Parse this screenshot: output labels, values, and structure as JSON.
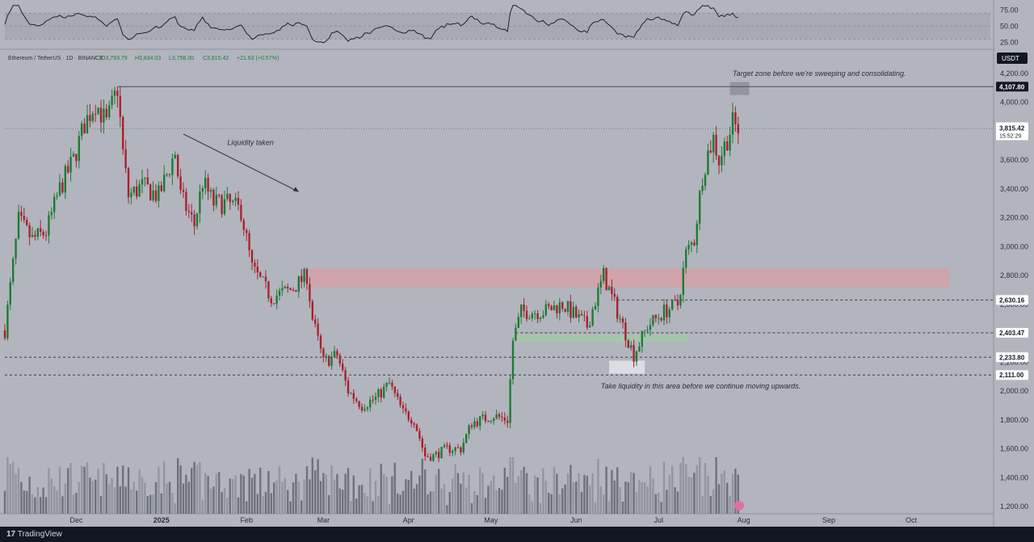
{
  "chart_data": {
    "type": "candlestick",
    "symbol_line": "Ethereum / TetherUS · 1D · BINANCE",
    "ohlc": {
      "open": "O3,793.79",
      "high": "H3,834.03",
      "low": "L3,756.00",
      "close": "C3,815.42",
      "change": "+21.63 (+0.57%)"
    },
    "currency": "USDT",
    "x_labels": [
      "Dec",
      "2025",
      "Feb",
      "Mar",
      "Apr",
      "May",
      "Jun",
      "Jul",
      "Aug",
      "Sep",
      "Oct"
    ],
    "price_ticks": [
      "4,200.00",
      "4,000.00",
      "3,800.00",
      "3,600.00",
      "3,400.00",
      "3,200.00",
      "3,000.00",
      "2,800.00",
      "2,600.00",
      "2,400.00",
      "2,200.00",
      "2,000.00",
      "1,800.00",
      "1,600.00",
      "1,400.00",
      "1,200.00"
    ],
    "rsi_ticks": [
      "75.00",
      "50.00",
      "25.00"
    ],
    "price_labels": [
      {
        "label": "4,107.80",
        "value": 4107.8,
        "style": "dark"
      },
      {
        "label": "2,630.16",
        "value": 2630.16,
        "style": "light"
      },
      {
        "label": "2,403.47",
        "value": 2403.47,
        "style": "light"
      },
      {
        "label": "2,233.80",
        "value": 2233.8,
        "style": "light"
      },
      {
        "label": "2,111.00",
        "value": 2111.0,
        "style": "light"
      }
    ],
    "last_price": {
      "label": "3,815.42",
      "value": 3815.42,
      "countdown": "15:52:29"
    },
    "annotations": [
      "Target zone before we're sweeping and consolidating.",
      "Liquidity taken",
      "Take liquidity in this area before we continue moving upwards."
    ],
    "ylim": [
      1150,
      4350
    ],
    "series": [
      {
        "date": "2024-11-05",
        "close": 2420
      },
      {
        "date": "2024-11-10",
        "close": 3180
      },
      {
        "date": "2024-11-15",
        "close": 3050
      },
      {
        "date": "2024-11-20",
        "close": 3100
      },
      {
        "date": "2024-11-25",
        "close": 3400
      },
      {
        "date": "2024-11-30",
        "close": 3600
      },
      {
        "date": "2024-12-04",
        "close": 3850
      },
      {
        "date": "2024-12-08",
        "close": 4000
      },
      {
        "date": "2024-12-12",
        "close": 3850
      },
      {
        "date": "2024-12-16",
        "close": 4100
      },
      {
        "date": "2024-12-18",
        "close": 3650
      },
      {
        "date": "2024-12-20",
        "close": 3350
      },
      {
        "date": "2024-12-25",
        "close": 3420
      },
      {
        "date": "2024-12-31",
        "close": 3350
      },
      {
        "date": "2025-01-06",
        "close": 3650
      },
      {
        "date": "2025-01-08",
        "close": 3350
      },
      {
        "date": "2025-01-13",
        "close": 3150
      },
      {
        "date": "2025-01-16",
        "close": 3450
      },
      {
        "date": "2025-01-20",
        "close": 3300
      },
      {
        "date": "2025-01-25",
        "close": 3300
      },
      {
        "date": "2025-01-30",
        "close": 3250
      },
      {
        "date": "2025-02-03",
        "close": 2850
      },
      {
        "date": "2025-02-10",
        "close": 2650
      },
      {
        "date": "2025-02-17",
        "close": 2700
      },
      {
        "date": "2025-02-23",
        "close": 2800
      },
      {
        "date": "2025-02-25",
        "close": 2500
      },
      {
        "date": "2025-03-01",
        "close": 2200
      },
      {
        "date": "2025-03-06",
        "close": 2250
      },
      {
        "date": "2025-03-10",
        "close": 2000
      },
      {
        "date": "2025-03-15",
        "close": 1900
      },
      {
        "date": "2025-03-20",
        "close": 1950
      },
      {
        "date": "2025-03-25",
        "close": 2050
      },
      {
        "date": "2025-03-30",
        "close": 1850
      },
      {
        "date": "2025-04-03",
        "close": 1800
      },
      {
        "date": "2025-04-07",
        "close": 1550
      },
      {
        "date": "2025-04-10",
        "close": 1550
      },
      {
        "date": "2025-04-15",
        "close": 1600
      },
      {
        "date": "2025-04-20",
        "close": 1600
      },
      {
        "date": "2025-04-24",
        "close": 1780
      },
      {
        "date": "2025-05-02",
        "close": 1830
      },
      {
        "date": "2025-05-07",
        "close": 1800
      },
      {
        "date": "2025-05-09",
        "close": 2350
      },
      {
        "date": "2025-05-12",
        "close": 2550
      },
      {
        "date": "2025-05-20",
        "close": 2550
      },
      {
        "date": "2025-05-27",
        "close": 2600
      },
      {
        "date": "2025-06-05",
        "close": 2450
      },
      {
        "date": "2025-06-11",
        "close": 2800
      },
      {
        "date": "2025-06-16",
        "close": 2550
      },
      {
        "date": "2025-06-22",
        "close": 2250
      },
      {
        "date": "2025-06-27",
        "close": 2450
      },
      {
        "date": "2025-07-03",
        "close": 2550
      },
      {
        "date": "2025-07-08",
        "close": 2600
      },
      {
        "date": "2025-07-11",
        "close": 2950
      },
      {
        "date": "2025-07-14",
        "close": 3050
      },
      {
        "date": "2025-07-17",
        "close": 3500
      },
      {
        "date": "2025-07-19",
        "close": 3650
      },
      {
        "date": "2025-07-21",
        "close": 3750
      },
      {
        "date": "2025-07-23",
        "close": 3600
      },
      {
        "date": "2025-07-25",
        "close": 3700
      },
      {
        "date": "2025-07-28",
        "close": 3850
      },
      {
        "date": "2025-07-30",
        "close": 3815
      }
    ],
    "zones": [
      {
        "name": "supply",
        "from": "2025-02-24",
        "to": "2025-10-15",
        "low": 2720,
        "high": 2850,
        "color": "#d4a0a8"
      },
      {
        "name": "demand",
        "from": "2025-05-10",
        "to": "2025-07-12",
        "low": 2340,
        "high": 2390,
        "color": "#a6c8a8"
      },
      {
        "name": "liquidity",
        "from": "2025-06-13",
        "to": "2025-06-26",
        "low": 2120,
        "high": 2210,
        "color": "#e3e4ea"
      },
      {
        "name": "target",
        "from": "2025-07-27",
        "to": "2025-08-03",
        "low": 4050,
        "high": 4140,
        "color": "#8c8f98"
      }
    ],
    "rsi": {
      "ylim": [
        18,
        88
      ]
    },
    "volume_scale_max": 1000,
    "colors": {
      "bull": "#1f7a35",
      "bear": "#a82130",
      "grid": "#a6a9b1",
      "text": "#2a2e39",
      "label_dark": "#131722"
    }
  },
  "footer": {
    "brand": "TradingView"
  }
}
